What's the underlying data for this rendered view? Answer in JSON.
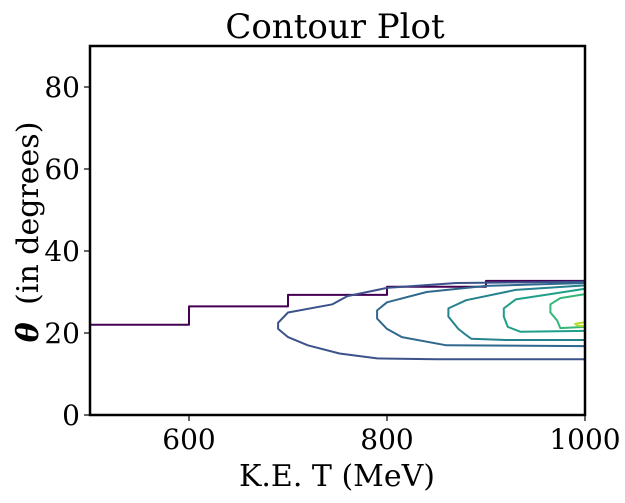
{
  "chart_data": {
    "type": "contour",
    "title": "Contour Plot",
    "xlabel": "K.E. T (MeV)",
    "ylabel_symbol": "θ",
    "ylabel_text": "(in degrees)",
    "xlim": [
      500,
      1000
    ],
    "ylim": [
      0,
      90
    ],
    "xticks": [
      600,
      800,
      1000
    ],
    "yticks": [
      0,
      20,
      40,
      60,
      80
    ],
    "colormap": "viridis",
    "levels": [
      {
        "color": "#440154",
        "points": [
          [
            500,
            22
          ],
          [
            600,
            22
          ],
          [
            600,
            26.5
          ],
          [
            700,
            26.5
          ],
          [
            700,
            29.3
          ],
          [
            800,
            29.3
          ],
          [
            800,
            31.3
          ],
          [
            900,
            31.3
          ],
          [
            900,
            32.7
          ],
          [
            1000,
            32.7
          ]
        ]
      },
      {
        "color": "#3b528b",
        "points": [
          [
            1000,
            32.5
          ],
          [
            870,
            32.2
          ],
          [
            800,
            31.0
          ],
          [
            760,
            29.0
          ],
          [
            745,
            27.0
          ],
          [
            700,
            25.0
          ],
          [
            690,
            22.5
          ],
          [
            690,
            21.0
          ],
          [
            700,
            19.0
          ],
          [
            720,
            17.0
          ],
          [
            752,
            15.0
          ],
          [
            790,
            13.8
          ],
          [
            850,
            13.6
          ],
          [
            1000,
            13.6
          ]
        ]
      },
      {
        "color": "#31688e",
        "points": [
          [
            1000,
            32.2
          ],
          [
            900,
            31.5
          ],
          [
            840,
            30.0
          ],
          [
            800,
            27.5
          ],
          [
            790,
            25.5
          ],
          [
            790,
            23.5
          ],
          [
            800,
            21.0
          ],
          [
            815,
            19.0
          ],
          [
            860,
            17.0
          ],
          [
            1000,
            16.8
          ]
        ]
      },
      {
        "color": "#26828e",
        "points": [
          [
            1000,
            31.6
          ],
          [
            930,
            30.5
          ],
          [
            880,
            28.0
          ],
          [
            862,
            26.0
          ],
          [
            862,
            24.0
          ],
          [
            872,
            21.0
          ],
          [
            880,
            19.5
          ],
          [
            885,
            18.6
          ],
          [
            920,
            18.3
          ],
          [
            1000,
            18.3
          ]
        ]
      },
      {
        "color": "#1f9e89",
        "points": [
          [
            1000,
            30.8
          ],
          [
            965,
            29.5
          ],
          [
            930,
            28.2
          ],
          [
            918,
            26.0
          ],
          [
            918,
            24.0
          ],
          [
            922,
            21.5
          ],
          [
            935,
            20.3
          ],
          [
            1000,
            20.5
          ]
        ]
      },
      {
        "color": "#35b779",
        "points": [
          [
            1000,
            29.5
          ],
          [
            975,
            28.5
          ],
          [
            965,
            27.0
          ],
          [
            965,
            25.0
          ],
          [
            972,
            23.0
          ],
          [
            975,
            21.2
          ],
          [
            1000,
            21.5
          ]
        ]
      },
      {
        "color": "#b5de2b",
        "points": [
          [
            1000,
            22.6
          ],
          [
            993,
            22.4
          ],
          [
            990,
            22.2
          ],
          [
            993,
            21.8
          ],
          [
            1000,
            21.6
          ]
        ]
      }
    ]
  }
}
